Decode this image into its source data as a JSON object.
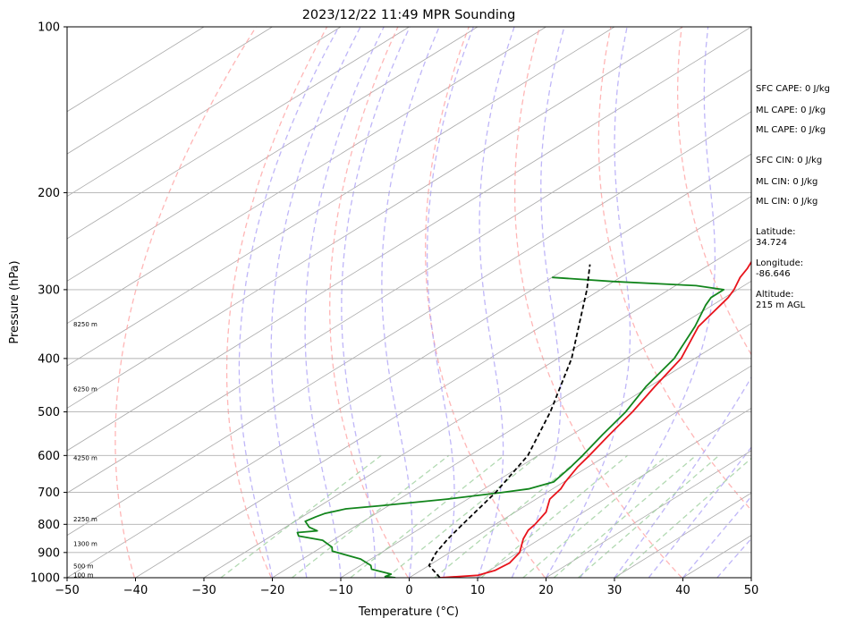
{
  "chart_data": {
    "type": "line",
    "title": "2023/12/22 11:49 MPR Sounding",
    "xlabel": "Temperature (°C)",
    "ylabel": "Pressure (hPa)",
    "xlim": [
      -50,
      50
    ],
    "ylim": [
      1000,
      100
    ],
    "y_scale": "log",
    "skew": "skew-T",
    "grid": true,
    "x_ticks": [
      "−50",
      "−40",
      "−30",
      "−20",
      "−10",
      "0",
      "10",
      "20",
      "30",
      "40",
      "50"
    ],
    "y_ticks": [
      {
        "p": 100,
        "label": "100"
      },
      {
        "p": 200,
        "label": "200"
      },
      {
        "p": 300,
        "label": "300"
      },
      {
        "p": 400,
        "label": "400"
      },
      {
        "p": 500,
        "label": "500"
      },
      {
        "p": 600,
        "label": "600"
      },
      {
        "p": 700,
        "label": "700"
      },
      {
        "p": 800,
        "label": "800"
      },
      {
        "p": 900,
        "label": "900"
      },
      {
        "p": 1000,
        "label": "1000"
      }
    ],
    "series": [
      {
        "color": "#e8141c",
        "points": [
          {
            "p": 1000,
            "t": 4.5
          },
          {
            "p": 990,
            "t": 9.5
          },
          {
            "p": 970,
            "t": 10.8
          },
          {
            "p": 940,
            "t": 11.2
          },
          {
            "p": 900,
            "t": 10.2
          },
          {
            "p": 850,
            "t": 7.5
          },
          {
            "p": 820,
            "t": 6.2
          },
          {
            "p": 800,
            "t": 5.8
          },
          {
            "p": 760,
            "t": 4.5
          },
          {
            "p": 720,
            "t": 2.0
          },
          {
            "p": 690,
            "t": 1.2
          },
          {
            "p": 670,
            "t": 0.2
          },
          {
            "p": 630,
            "t": -1.5
          },
          {
            "p": 600,
            "t": -2.5
          },
          {
            "p": 550,
            "t": -4.5
          },
          {
            "p": 500,
            "t": -6.5
          },
          {
            "p": 450,
            "t": -9.2
          },
          {
            "p": 400,
            "t": -12.0
          },
          {
            "p": 350,
            "t": -17.0
          },
          {
            "p": 310,
            "t": -19.5
          },
          {
            "p": 300,
            "t": -20.5
          },
          {
            "p": 285,
            "t": -22.5
          },
          {
            "p": 275,
            "t": -23.5
          },
          {
            "p": 265,
            "t": -24.8
          }
        ]
      },
      {
        "color": "#12851c",
        "points": [
          {
            "p": 1000,
            "t": -2.0
          },
          {
            "p": 995,
            "t": -3.8
          },
          {
            "p": 985,
            "t": -3.5
          },
          {
            "p": 965,
            "t": -7.5
          },
          {
            "p": 950,
            "t": -8.5
          },
          {
            "p": 925,
            "t": -11.5
          },
          {
            "p": 895,
            "t": -17.5
          },
          {
            "p": 880,
            "t": -18.5
          },
          {
            "p": 855,
            "t": -21.5
          },
          {
            "p": 840,
            "t": -26.0
          },
          {
            "p": 828,
            "t": -27.0
          },
          {
            "p": 822,
            "t": -24.5
          },
          {
            "p": 810,
            "t": -26.5
          },
          {
            "p": 790,
            "t": -28.5
          },
          {
            "p": 775,
            "t": -28.0
          },
          {
            "p": 765,
            "t": -27.5
          },
          {
            "p": 750,
            "t": -25.5
          },
          {
            "p": 740,
            "t": -21.0
          },
          {
            "p": 720,
            "t": -13.0
          },
          {
            "p": 700,
            "t": -6.5
          },
          {
            "p": 690,
            "t": -3.5
          },
          {
            "p": 670,
            "t": -1.5
          },
          {
            "p": 630,
            "t": -2.5
          },
          {
            "p": 600,
            "t": -3.5
          },
          {
            "p": 550,
            "t": -5.5
          },
          {
            "p": 500,
            "t": -7.5
          },
          {
            "p": 450,
            "t": -10.5
          },
          {
            "p": 400,
            "t": -13.0
          },
          {
            "p": 350,
            "t": -17.5
          },
          {
            "p": 320,
            "t": -21.0
          },
          {
            "p": 310,
            "t": -22.0
          },
          {
            "p": 300,
            "t": -22.0
          },
          {
            "p": 295,
            "t": -27.0
          },
          {
            "p": 290,
            "t": -40.0
          },
          {
            "p": 285,
            "t": -50.0
          }
        ]
      },
      {
        "color": "#000000",
        "dashed": true,
        "points": [
          {
            "p": 1000,
            "t": 4.5
          },
          {
            "p": 950,
            "t": 0.0
          },
          {
            "p": 900,
            "t": -2.0
          },
          {
            "p": 850,
            "t": -3.5
          },
          {
            "p": 800,
            "t": -4.8
          },
          {
            "p": 700,
            "t": -7.5
          },
          {
            "p": 600,
            "t": -11.5
          },
          {
            "p": 500,
            "t": -18.5
          },
          {
            "p": 400,
            "t": -28.0
          },
          {
            "p": 300,
            "t": -42.0
          },
          {
            "p": 270,
            "t": -47.5
          }
        ]
      }
    ],
    "height_labels": [
      {
        "p": 990,
        "text": "100 m"
      },
      {
        "p": 955,
        "text": "500 m"
      },
      {
        "p": 870,
        "text": "1300 m"
      },
      {
        "p": 785,
        "text": "2250 m"
      },
      {
        "p": 607,
        "text": "4250 m"
      },
      {
        "p": 455,
        "text": "6250 m"
      },
      {
        "p": 347,
        "text": "8250 m"
      }
    ],
    "side_panel": [
      "SFC CAPE: 0 J/kg",
      "ML CAPE: 0 J/kg",
      "ML CAPE: 0 J/kg",
      "SFC CIN: 0 J/kg",
      "ML CIN: 0 J/kg",
      "ML CIN: 0 J/kg",
      "Latitude:",
      "34.724",
      "Longitude:",
      "-86.646",
      "Altitude:",
      "215 m AGL"
    ],
    "colors": {
      "isotherm": "#a9a9a9",
      "dry_adiabat": "#ff9e9e",
      "moist_adiabat": "#a99ef6",
      "mixing_ratio": "#98cc98",
      "axes": "#000000"
    }
  }
}
